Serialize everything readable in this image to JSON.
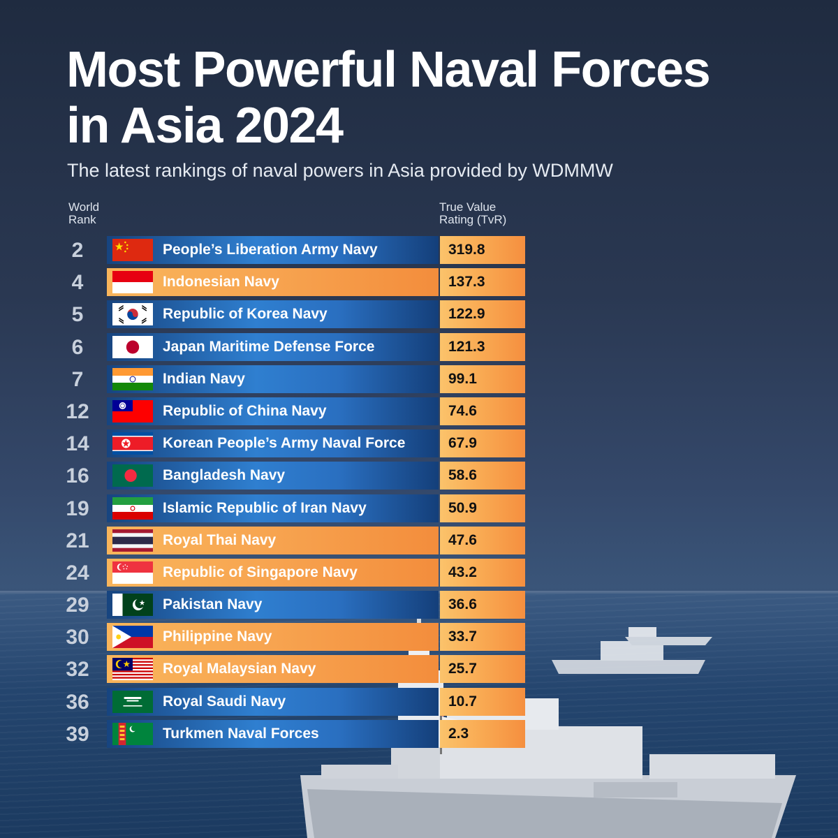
{
  "chart_data": {
    "type": "table",
    "title": "Most Powerful Naval Forces in Asia 2024",
    "subtitle": "The latest rankings of naval powers in Asia provided by WDMMW",
    "columns": {
      "rank_line1": "World",
      "rank_line2": "Rank",
      "value_line1": "True Value",
      "value_line2": "Rating (TvR)"
    },
    "rows": [
      {
        "rank": "2",
        "name": "People’s Liberation Army Navy",
        "value": "319.8",
        "flag": "china-flag",
        "style": "blue"
      },
      {
        "rank": "4",
        "name": "Indonesian Navy",
        "value": "137.3",
        "flag": "indonesia-flag",
        "style": "orange"
      },
      {
        "rank": "5",
        "name": "Republic of Korea Navy",
        "value": "122.9",
        "flag": "south-korea-flag",
        "style": "blue"
      },
      {
        "rank": "6",
        "name": "Japan Maritime Defense Force",
        "value": "121.3",
        "flag": "japan-flag",
        "style": "blue"
      },
      {
        "rank": "7",
        "name": "Indian Navy",
        "value": "99.1",
        "flag": "india-flag",
        "style": "blue"
      },
      {
        "rank": "12",
        "name": "Republic of China Navy",
        "value": "74.6",
        "flag": "taiwan-flag",
        "style": "blue"
      },
      {
        "rank": "14",
        "name": "Korean People’s Army Naval Force",
        "value": "67.9",
        "flag": "north-korea-flag",
        "style": "blue"
      },
      {
        "rank": "16",
        "name": "Bangladesh Navy",
        "value": "58.6",
        "flag": "bangladesh-flag",
        "style": "blue"
      },
      {
        "rank": "19",
        "name": "Islamic Republic of Iran Navy",
        "value": "50.9",
        "flag": "iran-flag",
        "style": "blue"
      },
      {
        "rank": "21",
        "name": "Royal Thai Navy",
        "value": "47.6",
        "flag": "thailand-flag",
        "style": "orange"
      },
      {
        "rank": "24",
        "name": "Republic of Singapore Navy",
        "value": "43.2",
        "flag": "singapore-flag",
        "style": "orange"
      },
      {
        "rank": "29",
        "name": "Pakistan Navy",
        "value": "36.6",
        "flag": "pakistan-flag",
        "style": "blue"
      },
      {
        "rank": "30",
        "name": "Philippine Navy",
        "value": "33.7",
        "flag": "philippines-flag",
        "style": "orange"
      },
      {
        "rank": "32",
        "name": "Royal Malaysian Navy",
        "value": "25.7",
        "flag": "malaysia-flag",
        "style": "orange"
      },
      {
        "rank": "36",
        "name": "Royal Saudi Navy",
        "value": "10.7",
        "flag": "saudi-arabia-flag",
        "style": "blue"
      },
      {
        "rank": "39",
        "name": "Turkmen Naval Forces",
        "value": "2.3",
        "flag": "turkmenistan-flag",
        "style": "blue"
      }
    ]
  },
  "colors": {
    "blue_row": "#2f7fd0",
    "orange_row": "#f7a450",
    "value_cell": "#f9a952",
    "background": "#2a3852"
  }
}
